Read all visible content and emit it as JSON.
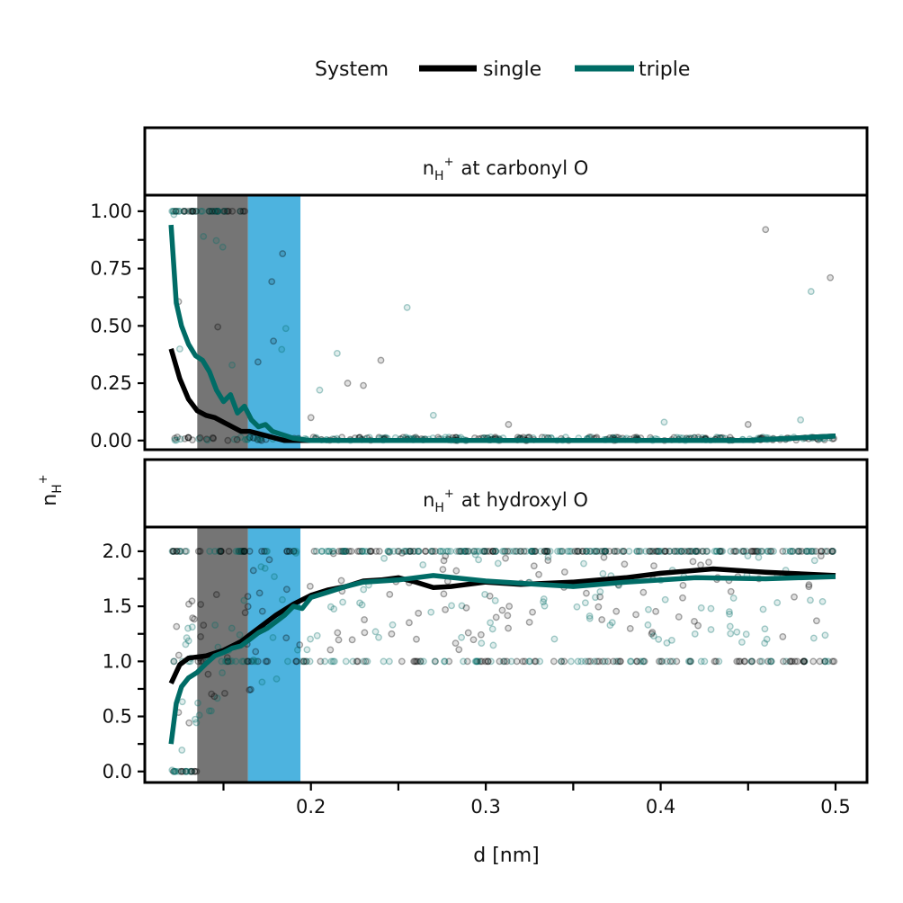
{
  "legend": {
    "title": "System",
    "entries": [
      {
        "name": "single",
        "color": "#000000"
      },
      {
        "name": "triple",
        "color": "#006c66"
      }
    ],
    "placement": "top-center"
  },
  "axes": {
    "xlabel": "d [nm]",
    "ylabel_main": "n",
    "ylabel_sub": "H",
    "ylabel_sup": "+"
  },
  "colors": {
    "band_gray": "#6e6e6e",
    "band_blue": "#2ea6d9"
  },
  "chart_data": [
    {
      "type": "line",
      "panel_title": {
        "main": "n",
        "sub": "H",
        "sup": "+",
        "rest": "at carbonyl O"
      },
      "xlim": [
        0.105,
        0.518
      ],
      "ylim": [
        -0.04,
        1.07
      ],
      "xticks": [
        0.2,
        0.3,
        0.4,
        0.5
      ],
      "xtick_labels": [
        "0.2",
        "0.3",
        "0.4",
        "0.5"
      ],
      "yticks": [
        0.0,
        0.25,
        0.5,
        0.75,
        1.0
      ],
      "ytick_labels": [
        "0.00",
        "0.25",
        "0.50",
        "0.75",
        "1.00"
      ],
      "bands": [
        {
          "x": [
            0.135,
            0.164
          ],
          "color": "gray"
        },
        {
          "x": [
            0.164,
            0.194
          ],
          "color": "blue"
        }
      ],
      "series": [
        {
          "name": "single",
          "x": [
            0.12,
            0.125,
            0.13,
            0.135,
            0.14,
            0.145,
            0.15,
            0.155,
            0.16,
            0.165,
            0.17,
            0.175,
            0.18,
            0.185,
            0.19,
            0.2,
            0.25,
            0.3,
            0.35,
            0.4,
            0.45,
            0.5
          ],
          "values": [
            0.4,
            0.27,
            0.18,
            0.13,
            0.11,
            0.1,
            0.08,
            0.06,
            0.04,
            0.04,
            0.03,
            0.02,
            0.01,
            0.0,
            0.0,
            0.0,
            0.0,
            0.0,
            0.0,
            0.0,
            0.0,
            0.02
          ]
        },
        {
          "name": "triple",
          "x": [
            0.12,
            0.123,
            0.126,
            0.13,
            0.134,
            0.138,
            0.142,
            0.146,
            0.15,
            0.154,
            0.158,
            0.162,
            0.166,
            0.17,
            0.174,
            0.178,
            0.182,
            0.186,
            0.19,
            0.2,
            0.25,
            0.3,
            0.35,
            0.4,
            0.45,
            0.5
          ],
          "values": [
            0.94,
            0.6,
            0.5,
            0.42,
            0.37,
            0.35,
            0.3,
            0.22,
            0.17,
            0.2,
            0.12,
            0.15,
            0.09,
            0.06,
            0.07,
            0.04,
            0.03,
            0.02,
            0.01,
            0.0,
            0.0,
            0.0,
            0.0,
            0.0,
            0.0,
            0.02
          ]
        }
      ],
      "scatter_outliers": [
        {
          "x": 0.46,
          "y": 0.92
        },
        {
          "x": 0.486,
          "y": 0.65
        },
        {
          "x": 0.497,
          "y": 0.71
        },
        {
          "x": 0.255,
          "y": 0.58
        },
        {
          "x": 0.24,
          "y": 0.35
        },
        {
          "x": 0.215,
          "y": 0.38
        },
        {
          "x": 0.23,
          "y": 0.24
        },
        {
          "x": 0.205,
          "y": 0.22
        },
        {
          "x": 0.221,
          "y": 0.25
        },
        {
          "x": 0.27,
          "y": 0.11
        },
        {
          "x": 0.313,
          "y": 0.07
        },
        {
          "x": 0.402,
          "y": 0.08
        },
        {
          "x": 0.45,
          "y": 0.07
        },
        {
          "x": 0.48,
          "y": 0.09
        },
        {
          "x": 0.2,
          "y": 0.1
        }
      ]
    },
    {
      "type": "line",
      "panel_title": {
        "main": "n",
        "sub": "H",
        "sup": "+",
        "rest": "at hydroxyl O"
      },
      "xlim": [
        0.105,
        0.518
      ],
      "ylim": [
        -0.1,
        2.22
      ],
      "xticks": [
        0.2,
        0.3,
        0.4,
        0.5
      ],
      "xtick_labels": [
        "0.2",
        "0.3",
        "0.4",
        "0.5"
      ],
      "yticks": [
        0.0,
        0.5,
        1.0,
        1.5,
        2.0
      ],
      "ytick_labels": [
        "0.0",
        "0.5",
        "1.0",
        "1.5",
        "2.0"
      ],
      "bands": [
        {
          "x": [
            0.135,
            0.164
          ],
          "color": "gray"
        },
        {
          "x": [
            0.164,
            0.194
          ],
          "color": "blue"
        }
      ],
      "series": [
        {
          "name": "single",
          "x": [
            0.12,
            0.125,
            0.13,
            0.14,
            0.15,
            0.16,
            0.17,
            0.18,
            0.19,
            0.2,
            0.21,
            0.22,
            0.23,
            0.24,
            0.25,
            0.26,
            0.27,
            0.28,
            0.3,
            0.32,
            0.35,
            0.38,
            0.4,
            0.43,
            0.46,
            0.5
          ],
          "values": [
            0.8,
            0.97,
            1.03,
            1.05,
            1.1,
            1.18,
            1.3,
            1.42,
            1.52,
            1.6,
            1.65,
            1.68,
            1.73,
            1.74,
            1.76,
            1.72,
            1.67,
            1.68,
            1.72,
            1.7,
            1.72,
            1.76,
            1.8,
            1.84,
            1.81,
            1.78
          ]
        },
        {
          "name": "triple",
          "x": [
            0.12,
            0.123,
            0.126,
            0.13,
            0.135,
            0.14,
            0.145,
            0.15,
            0.155,
            0.16,
            0.165,
            0.17,
            0.175,
            0.18,
            0.185,
            0.19,
            0.195,
            0.2,
            0.21,
            0.22,
            0.23,
            0.25,
            0.27,
            0.3,
            0.33,
            0.35,
            0.38,
            0.42,
            0.46,
            0.5
          ],
          "values": [
            0.25,
            0.62,
            0.77,
            0.85,
            0.9,
            0.98,
            1.05,
            1.08,
            1.12,
            1.14,
            1.2,
            1.26,
            1.3,
            1.36,
            1.42,
            1.5,
            1.48,
            1.58,
            1.63,
            1.68,
            1.72,
            1.74,
            1.78,
            1.73,
            1.7,
            1.68,
            1.72,
            1.76,
            1.75,
            1.77
          ]
        }
      ]
    }
  ]
}
